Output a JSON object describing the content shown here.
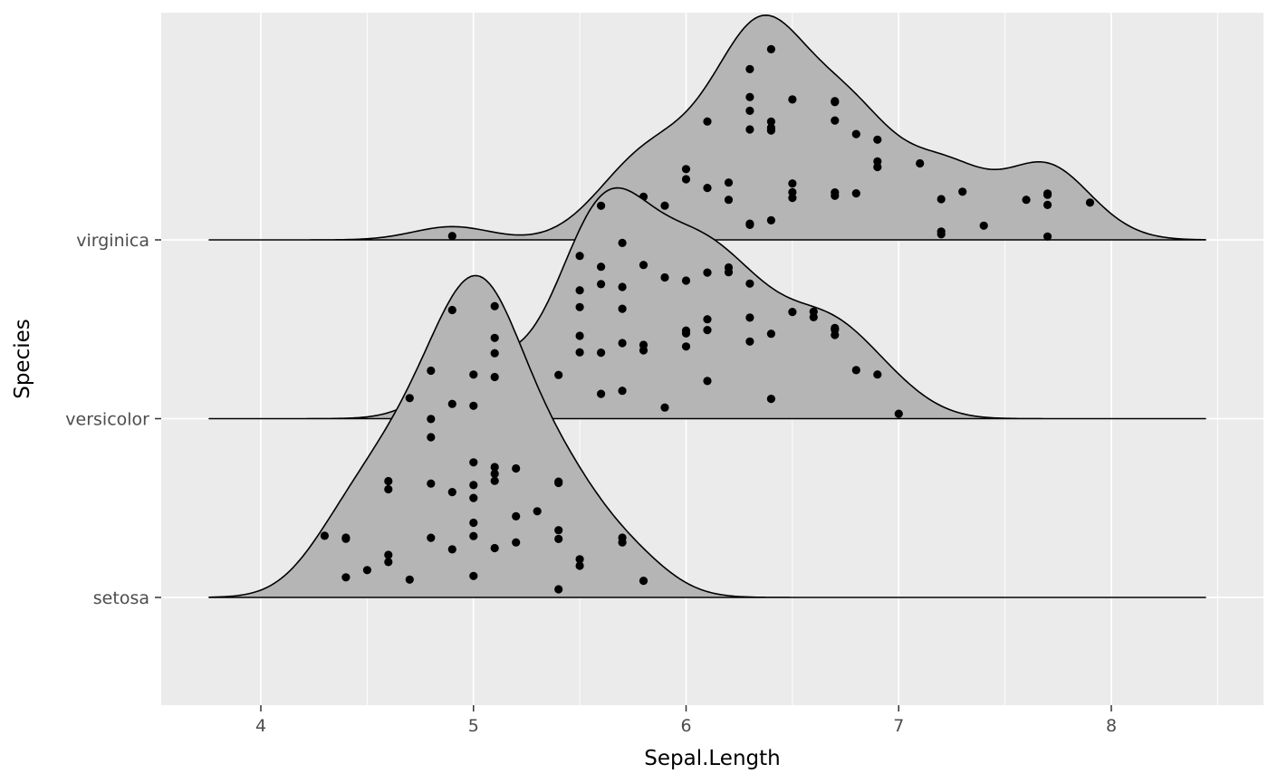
{
  "figure": {
    "background": "#FFFFFF"
  },
  "panel": {
    "background": "#EBEBEB",
    "grid_major_color": "#FFFFFF",
    "grid_minor_color": "#FFFFFF",
    "tick_mark_color": "#333333",
    "tick_label_color": "#4D4D4D"
  },
  "x_axis": {
    "title": "Sepal.Length",
    "major_ticks": [
      4,
      5,
      6,
      7,
      8
    ],
    "major_tick_labels": [
      "4",
      "5",
      "6",
      "7",
      "8"
    ],
    "minor_ticks": [
      4.5,
      5.5,
      6.5,
      7.5,
      8.5
    ]
  },
  "y_axis": {
    "title": "Species",
    "categories_top_to_bottom": [
      "virginica",
      "versicolor",
      "setosa"
    ]
  },
  "chart_data": {
    "type": "area",
    "subtype": "ridgeline-density-with-jittered-points",
    "title": "",
    "xlabel": "Sepal.Length",
    "ylabel": "Species",
    "x_range_shown": [
      3.53,
      8.72
    ],
    "bandwidth": 0.181,
    "relative_scale": 1.8,
    "fill_color": "#B5B5B5",
    "outline_color": "#000000",
    "point_color": "#000000",
    "categories": [
      "virginica",
      "versicolor",
      "setosa"
    ],
    "series": [
      {
        "name": "setosa",
        "values": [
          5.1,
          4.9,
          4.7,
          4.6,
          5.0,
          5.4,
          4.6,
          5.0,
          4.4,
          4.9,
          5.4,
          4.8,
          4.8,
          4.3,
          5.8,
          5.7,
          5.4,
          5.1,
          5.7,
          5.1,
          5.4,
          5.1,
          4.6,
          5.1,
          4.8,
          5.0,
          5.0,
          5.2,
          5.2,
          4.7,
          4.8,
          5.4,
          5.2,
          5.5,
          4.9,
          5.0,
          5.5,
          4.9,
          4.4,
          5.1,
          5.0,
          4.5,
          4.4,
          5.0,
          5.1,
          4.8,
          5.1,
          4.6,
          5.3,
          5.0
        ]
      },
      {
        "name": "versicolor",
        "values": [
          7.0,
          6.4,
          6.9,
          5.5,
          6.5,
          5.7,
          6.3,
          4.9,
          6.6,
          5.2,
          5.0,
          5.9,
          6.0,
          6.1,
          5.6,
          6.7,
          5.6,
          5.8,
          6.2,
          5.6,
          5.9,
          6.1,
          6.3,
          6.1,
          6.4,
          6.6,
          6.8,
          6.7,
          6.0,
          5.7,
          5.5,
          5.5,
          5.8,
          6.0,
          5.4,
          6.0,
          6.7,
          6.3,
          5.6,
          5.5,
          5.5,
          6.1,
          5.8,
          5.0,
          5.6,
          5.7,
          5.7,
          6.2,
          5.1,
          5.7
        ]
      },
      {
        "name": "virginica",
        "values": [
          6.3,
          5.8,
          7.1,
          6.3,
          6.5,
          7.6,
          4.9,
          7.3,
          6.7,
          7.2,
          6.5,
          6.4,
          6.8,
          5.7,
          5.8,
          6.4,
          6.5,
          7.7,
          7.7,
          6.0,
          6.9,
          5.6,
          7.7,
          6.3,
          6.7,
          7.2,
          6.2,
          6.1,
          6.4,
          7.2,
          7.4,
          7.9,
          6.4,
          6.3,
          6.1,
          7.7,
          6.3,
          6.4,
          6.0,
          6.9,
          6.7,
          6.9,
          5.8,
          6.8,
          6.7,
          6.7,
          6.3,
          6.5,
          6.2,
          5.9
        ]
      }
    ]
  }
}
